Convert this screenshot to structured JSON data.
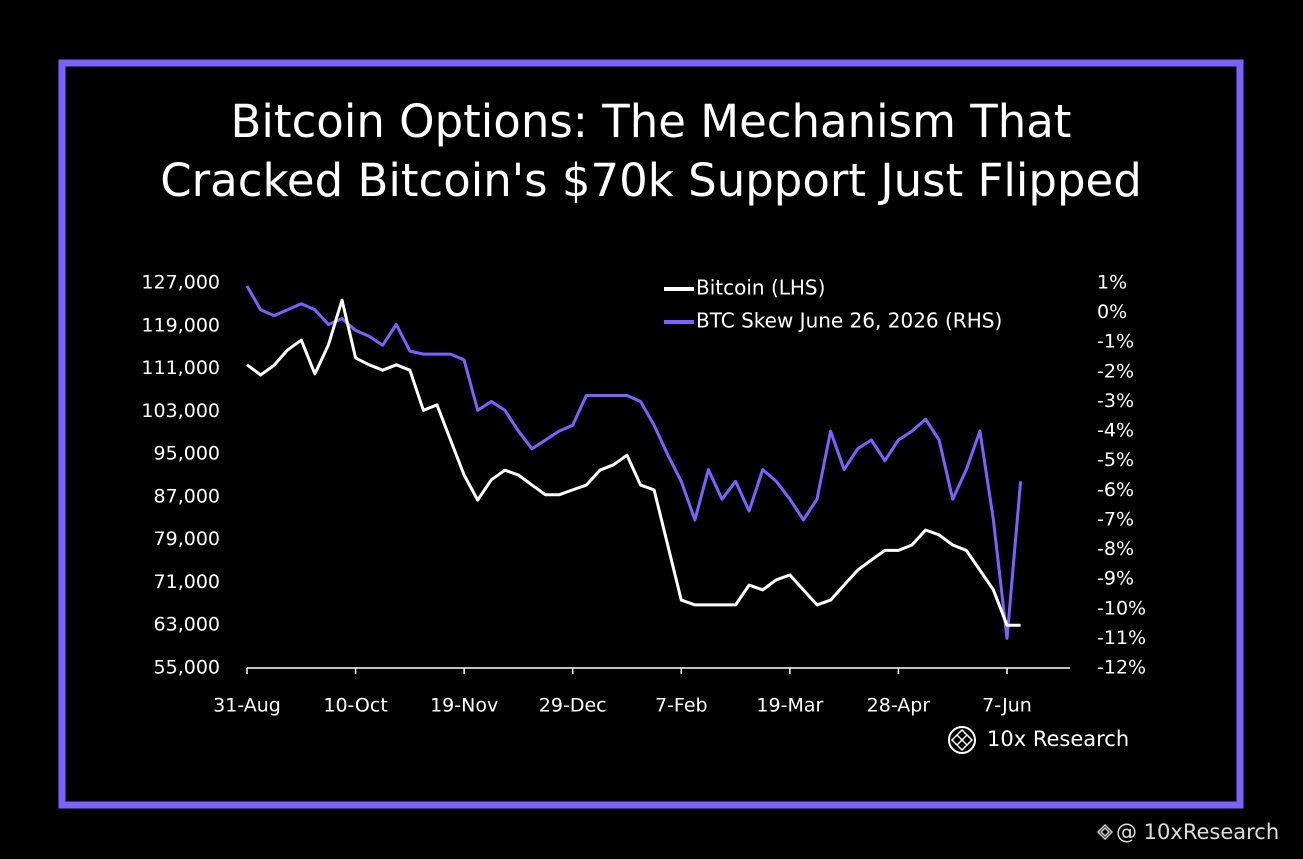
{
  "chart_data": {
    "type": "line",
    "title": [
      "Bitcoin Options: The Mechanism That",
      "Cracked Bitcoin's $70k Support Just Flipped"
    ],
    "source": "10x Research",
    "watermark": "@ 10xResearch",
    "x": [
      "31-Aug",
      "5-Sep",
      "10-Sep",
      "15-Sep",
      "20-Sep",
      "25-Sep",
      "30-Sep",
      "5-Oct",
      "10-Oct",
      "15-Oct",
      "20-Oct",
      "25-Oct",
      "30-Oct",
      "4-Nov",
      "9-Nov",
      "14-Nov",
      "19-Nov",
      "24-Nov",
      "29-Nov",
      "4-Dec",
      "9-Dec",
      "14-Dec",
      "19-Dec",
      "24-Dec",
      "29-Dec",
      "3-Jan",
      "8-Jan",
      "13-Jan",
      "18-Jan",
      "23-Jan",
      "28-Jan",
      "2-Feb",
      "7-Feb",
      "12-Feb",
      "17-Feb",
      "22-Feb",
      "27-Feb",
      "4-Mar",
      "9-Mar",
      "14-Mar",
      "19-Mar",
      "24-Mar",
      "29-Mar",
      "3-Apr",
      "8-Apr",
      "13-Apr",
      "18-Apr",
      "23-Apr",
      "28-Apr",
      "3-May",
      "8-May",
      "13-May",
      "18-May",
      "23-May",
      "28-May",
      "2-Jun",
      "7-Jun",
      "12-Jun"
    ],
    "xticks": [
      "31-Aug",
      "10-Oct",
      "19-Nov",
      "29-Dec",
      "7-Feb",
      "19-Mar",
      "28-Apr",
      "7-Jun"
    ],
    "series": [
      {
        "name": "Bitcoin (LHS)",
        "color": "#ffffff",
        "axis": "y",
        "values": [
          111700,
          109800,
          111600,
          114500,
          116300,
          110000,
          115400,
          123800,
          113000,
          111700,
          110700,
          111700,
          110700,
          103200,
          104200,
          97600,
          91100,
          86400,
          90200,
          92000,
          91100,
          89200,
          87400,
          87400,
          88300,
          89200,
          92000,
          93000,
          94800,
          89200,
          88300,
          78000,
          67700,
          66800,
          66800,
          66800,
          66800,
          70500,
          69600,
          71500,
          72400,
          69600,
          66800,
          67700,
          70500,
          73300,
          75200,
          77000,
          77000,
          78000,
          80800,
          79900,
          78000,
          77000,
          73300,
          69600,
          63000,
          63000
        ]
      },
      {
        "name": "BTC Skew June 26, 2026 (RHS)",
        "color": "#7b61ff",
        "axis": "y2",
        "values": [
          0.9,
          0.1,
          -0.1,
          0.1,
          0.3,
          0.1,
          -0.4,
          -0.2,
          -0.6,
          -0.8,
          -1.1,
          -0.4,
          -1.3,
          -1.4,
          -1.4,
          -1.4,
          -1.6,
          -3.3,
          -3.0,
          -3.3,
          -4.0,
          -4.6,
          -4.3,
          -4.0,
          -3.8,
          -2.8,
          -2.8,
          -2.8,
          -2.8,
          -3.0,
          -3.8,
          -4.8,
          -5.7,
          -7,
          -5.3,
          -6.3,
          -5.7,
          -6.7,
          -5.3,
          -5.7,
          -6.3,
          -7,
          -6.3,
          -4,
          -5.3,
          -4.6,
          -4.3,
          -5,
          -4.3,
          -4,
          -3.6,
          -4.3,
          -6.3,
          -5.3,
          -4,
          -7,
          -11,
          -5.7
        ]
      }
    ],
    "ylim": [
      55000,
      127000
    ],
    "yticks": [
      {
        "value": 55000,
        "label": "55,000"
      },
      {
        "value": 63000,
        "label": "63,000"
      },
      {
        "value": 71000,
        "label": "71,000"
      },
      {
        "value": 79000,
        "label": "79,000"
      },
      {
        "value": 87000,
        "label": "87,000"
      },
      {
        "value": 95000,
        "label": "95,000"
      },
      {
        "value": 103000,
        "label": "103,000"
      },
      {
        "value": 111000,
        "label": "111,000"
      },
      {
        "value": 119000,
        "label": "119,000"
      },
      {
        "value": 127000,
        "label": "127,000"
      }
    ],
    "y2lim": [
      -12,
      1
    ],
    "y2ticks": [
      {
        "value": 1,
        "label": "1%"
      },
      {
        "value": 0,
        "label": "0%"
      },
      {
        "value": -1,
        "label": "-1%"
      },
      {
        "value": -2,
        "label": "-2%"
      },
      {
        "value": -3,
        "label": "-3%"
      },
      {
        "value": -4,
        "label": "-4%"
      },
      {
        "value": -5,
        "label": "-5%"
      },
      {
        "value": -6,
        "label": "-6%"
      },
      {
        "value": -7,
        "label": "-7%"
      },
      {
        "value": -8,
        "label": "-8%"
      },
      {
        "value": -9,
        "label": "-9%"
      },
      {
        "value": -10,
        "label": "-10%"
      },
      {
        "value": -11,
        "label": "-11%"
      },
      {
        "value": -12,
        "label": "-12%"
      }
    ],
    "grid": false,
    "legend": "top-right"
  }
}
